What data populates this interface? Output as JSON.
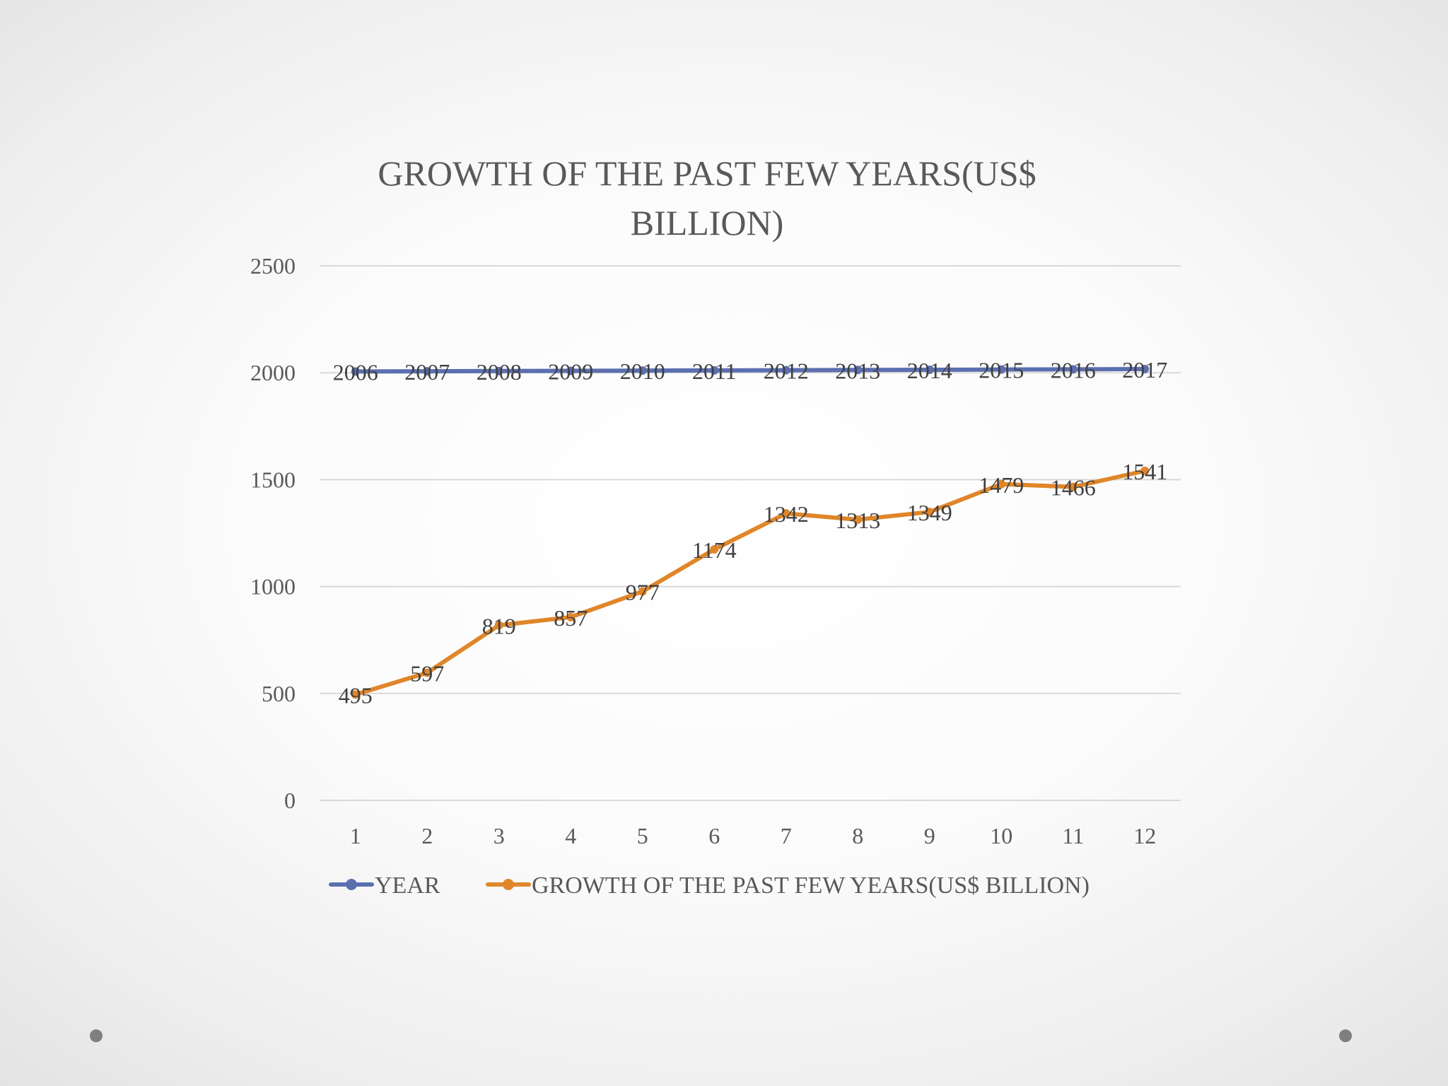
{
  "chart_data": {
    "type": "line",
    "title_lines": [
      "GROWTH OF THE PAST FEW YEARS(US$",
      "BILLION)"
    ],
    "categories": [
      "1",
      "2",
      "3",
      "4",
      "5",
      "6",
      "7",
      "8",
      "9",
      "10",
      "11",
      "12"
    ],
    "series": [
      {
        "name": "YEAR",
        "color": "#5b6fb0",
        "values": [
          2006,
          2007,
          2008,
          2009,
          2010,
          2011,
          2012,
          2013,
          2014,
          2015,
          2016,
          2017
        ]
      },
      {
        "name": "GROWTH OF THE PAST FEW YEARS(US$ BILLION)",
        "color": "#e0862a",
        "values": [
          495,
          597,
          819,
          857,
          977,
          1174,
          1342,
          1313,
          1349,
          1479,
          1466,
          1541
        ]
      }
    ],
    "y_ticks": [
      0,
      500,
      1000,
      1500,
      2000,
      2500
    ],
    "ylim": [
      0,
      2500
    ],
    "grid": true,
    "legend_position": "bottom"
  }
}
